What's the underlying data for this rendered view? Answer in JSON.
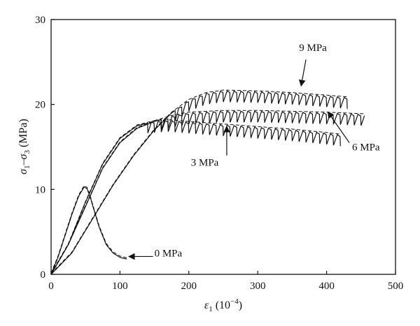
{
  "chart_data": {
    "type": "line",
    "title": "",
    "xlabel": "ε1 (10^-4)",
    "ylabel": "σ1−σ3 (MPa)",
    "xlim": [
      0,
      500
    ],
    "ylim": [
      0,
      30
    ],
    "x_ticks": [
      0,
      100,
      200,
      300,
      400,
      500
    ],
    "y_ticks": [
      0,
      10,
      20,
      30
    ],
    "grid": false,
    "legend": "none",
    "annotations": [
      "0 MPa",
      "3 MPa",
      "6 MPa",
      "9 MPa"
    ],
    "series": [
      {
        "name": "0 MPa",
        "x": [
          0,
          10,
          20,
          30,
          40,
          48,
          52,
          56,
          60,
          70,
          80,
          90,
          100,
          110
        ],
        "y": [
          0,
          2,
          4.5,
          7,
          9.2,
          10.3,
          10.1,
          9.3,
          8.2,
          5.5,
          3.5,
          2.5,
          2.0,
          1.8
        ],
        "sawtooth": false
      },
      {
        "name": "3 MPa",
        "x": [
          0,
          25,
          50,
          75,
          100,
          125,
          150,
          170,
          200,
          250,
          300,
          350,
          400,
          420
        ],
        "y": [
          0,
          3.5,
          8.5,
          13,
          16,
          17.5,
          18.0,
          18.1,
          17.9,
          17.6,
          17.3,
          17.0,
          16.6,
          16.4
        ],
        "sawtooth": true,
        "osc_start": 140
      },
      {
        "name": "6 MPa",
        "x": [
          0,
          25,
          50,
          75,
          100,
          125,
          150,
          175,
          200,
          250,
          300,
          350,
          400,
          455
        ],
        "y": [
          0,
          3.5,
          8,
          12.5,
          15.5,
          17.2,
          18.0,
          18.6,
          19.0,
          19.2,
          19.2,
          19.1,
          19.0,
          18.8
        ],
        "sawtooth": true,
        "osc_start": 160
      },
      {
        "name": "9 MPa",
        "x": [
          0,
          30,
          60,
          90,
          120,
          150,
          175,
          200,
          225,
          250,
          300,
          350,
          400,
          430
        ],
        "y": [
          0,
          2.5,
          6.5,
          10.5,
          14,
          17,
          19,
          20.5,
          21.3,
          21.6,
          21.5,
          21.3,
          21.0,
          20.8
        ],
        "sawtooth": true,
        "osc_start": 180
      }
    ],
    "callouts": [
      {
        "label": "9 MPa",
        "text_at": [
          360,
          26.3
        ],
        "arrow_from": [
          370,
          25.3
        ],
        "arrow_to": [
          363,
          22.2
        ]
      },
      {
        "label": "6 MPa",
        "text_at": [
          437,
          14.6
        ],
        "arrow_from": [
          433,
          15.5
        ],
        "arrow_to": [
          402,
          19.1
        ]
      },
      {
        "label": "3 MPa",
        "text_at": [
          203,
          12.8
        ],
        "arrow_from": [
          255,
          14.0
        ],
        "arrow_to": [
          255,
          17.4
        ]
      },
      {
        "label": "0 MPa",
        "text_at": [
          150,
          2.1
        ],
        "arrow_from": [
          148,
          2.1
        ],
        "arrow_to": [
          113,
          2.1
        ]
      }
    ]
  }
}
